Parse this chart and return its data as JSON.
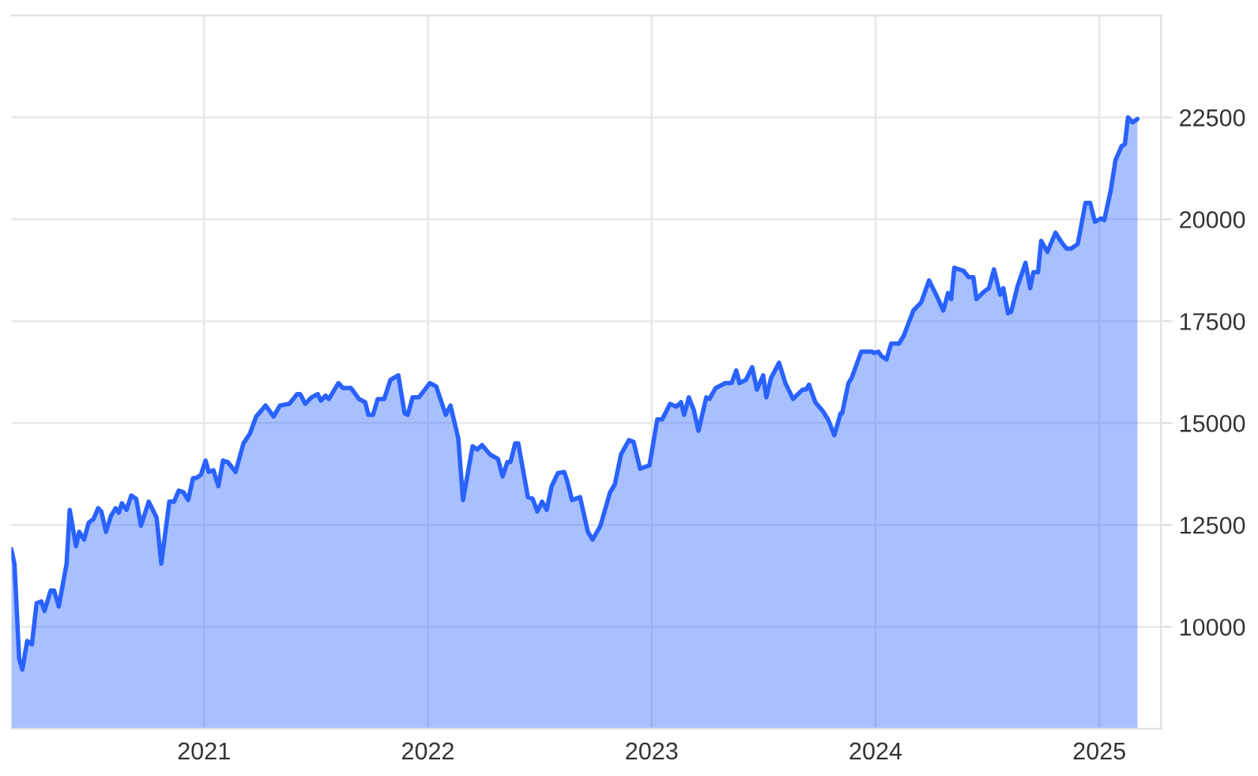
{
  "chart_data": {
    "type": "area",
    "xlim": [
      2020.139,
      2025.276
    ],
    "xticks": [
      2021,
      2022,
      2023,
      2024,
      2025
    ],
    "ylim": [
      7500,
      25000
    ],
    "yticks": [
      10000,
      12500,
      15000,
      17500,
      20000,
      22500
    ],
    "grid": true,
    "legend": false,
    "series": [
      {
        "color": "#2962ff",
        "x": [
          2020.139,
          2020.153,
          2020.174,
          2020.188,
          2020.21,
          2020.231,
          2020.252,
          2020.273,
          2020.287,
          2020.315,
          2020.33,
          2020.351,
          2020.386,
          2020.4,
          2020.428,
          2020.442,
          2020.464,
          2020.485,
          2020.506,
          2020.527,
          2020.541,
          2020.562,
          2020.584,
          2020.605,
          2020.619,
          2020.633,
          2020.654,
          2020.675,
          2020.697,
          2020.718,
          2020.753,
          2020.788,
          2020.809,
          2020.845,
          2020.866,
          2020.887,
          2020.908,
          2020.929,
          2020.951,
          2020.965,
          2020.986,
          2021.007,
          2021.021,
          2021.042,
          2021.064,
          2021.085,
          2021.106,
          2021.141,
          2021.176,
          2021.205,
          2021.233,
          2021.275,
          2021.311,
          2021.339,
          2021.381,
          2021.416,
          2021.43,
          2021.452,
          2021.48,
          2021.508,
          2021.522,
          2021.543,
          2021.558,
          2021.6,
          2021.621,
          2021.656,
          2021.692,
          2021.72,
          2021.734,
          2021.755,
          2021.776,
          2021.805,
          2021.833,
          2021.868,
          2021.896,
          2021.91,
          2021.932,
          2021.96,
          2022.009,
          2022.037,
          2022.08,
          2022.101,
          2022.136,
          2022.157,
          2022.2,
          2022.221,
          2022.242,
          2022.277,
          2022.313,
          2022.334,
          2022.355,
          2022.369,
          2022.39,
          2022.404,
          2022.447,
          2022.468,
          2022.489,
          2022.51,
          2022.531,
          2022.553,
          2022.581,
          2022.609,
          2022.623,
          2022.644,
          2022.68,
          2022.715,
          2022.736,
          2022.771,
          2022.814,
          2022.835,
          2022.863,
          2022.898,
          2022.919,
          2022.948,
          2022.99,
          2023.025,
          2023.047,
          2023.082,
          2023.11,
          2023.131,
          2023.145,
          2023.166,
          2023.188,
          2023.209,
          2023.244,
          2023.258,
          2023.286,
          2023.329,
          2023.357,
          2023.378,
          2023.392,
          2023.421,
          2023.449,
          2023.47,
          2023.498,
          2023.512,
          2023.533,
          2023.569,
          2023.597,
          2023.632,
          2023.653,
          2023.675,
          2023.689,
          2023.703,
          2023.731,
          2023.766,
          2023.788,
          2023.816,
          2023.844,
          2023.851,
          2023.879,
          2023.893,
          2023.936,
          2023.985,
          2023.992,
          2024.013,
          2024.027,
          2024.049,
          2024.07,
          2024.105,
          2024.126,
          2024.169,
          2024.204,
          2024.239,
          2024.274,
          2024.303,
          2024.324,
          2024.338,
          2024.352,
          2024.394,
          2024.416,
          2024.437,
          2024.451,
          2024.486,
          2024.507,
          2024.529,
          2024.557,
          2024.571,
          2024.592,
          2024.606,
          2024.634,
          2024.67,
          2024.691,
          2024.705,
          2024.726,
          2024.74,
          2024.768,
          2024.804,
          2024.832,
          2024.853,
          2024.874,
          2024.903,
          2024.917,
          2024.938,
          2024.959,
          2024.98,
          2025.008,
          2025.022,
          2025.051,
          2025.072,
          2025.1,
          2025.114,
          2025.128,
          2025.149,
          2025.17
        ],
        "values": [
          11900,
          11550,
          9220,
          8950,
          9650,
          9570,
          10580,
          10620,
          10390,
          10890,
          10890,
          10500,
          11550,
          12870,
          11980,
          12330,
          12140,
          12560,
          12640,
          12910,
          12830,
          12330,
          12720,
          12910,
          12800,
          13030,
          12870,
          13220,
          13140,
          12480,
          13070,
          12680,
          11550,
          13070,
          13070,
          13340,
          13300,
          13110,
          13650,
          13650,
          13730,
          14080,
          13800,
          13840,
          13450,
          14080,
          14040,
          13800,
          14500,
          14740,
          15160,
          15430,
          15160,
          15430,
          15470,
          15710,
          15710,
          15470,
          15630,
          15710,
          15550,
          15670,
          15590,
          15980,
          15860,
          15860,
          15590,
          15510,
          15200,
          15200,
          15590,
          15590,
          16060,
          16170,
          15240,
          15200,
          15630,
          15630,
          15980,
          15900,
          15200,
          15430,
          14620,
          13110,
          14430,
          14350,
          14460,
          14230,
          14120,
          13690,
          14040,
          14040,
          14500,
          14500,
          13180,
          13140,
          12830,
          13070,
          12870,
          13450,
          13770,
          13800,
          13570,
          13110,
          13180,
          12330,
          12140,
          12480,
          13300,
          13490,
          14230,
          14580,
          14540,
          13880,
          13960,
          15090,
          15090,
          15470,
          15400,
          15510,
          15200,
          15630,
          15320,
          14810,
          15630,
          15590,
          15860,
          15980,
          15980,
          16290,
          15980,
          16060,
          16370,
          15820,
          16170,
          15630,
          16100,
          16480,
          15980,
          15590,
          15710,
          15820,
          15820,
          15940,
          15510,
          15280,
          15090,
          14700,
          15240,
          15240,
          15980,
          16100,
          16750,
          16750,
          16720,
          16750,
          16640,
          16560,
          16950,
          16950,
          17140,
          17760,
          17960,
          18500,
          18110,
          17760,
          18190,
          18040,
          18810,
          18730,
          18580,
          18580,
          18040,
          18230,
          18310,
          18770,
          18150,
          18310,
          17690,
          17730,
          18350,
          18930,
          18310,
          18700,
          18700,
          19470,
          19200,
          19670,
          19430,
          19280,
          19280,
          19390,
          19780,
          20400,
          20400,
          19940,
          20020,
          19980,
          20710,
          21450,
          21800,
          21840,
          22500,
          22380,
          22460
        ]
      }
    ]
  }
}
